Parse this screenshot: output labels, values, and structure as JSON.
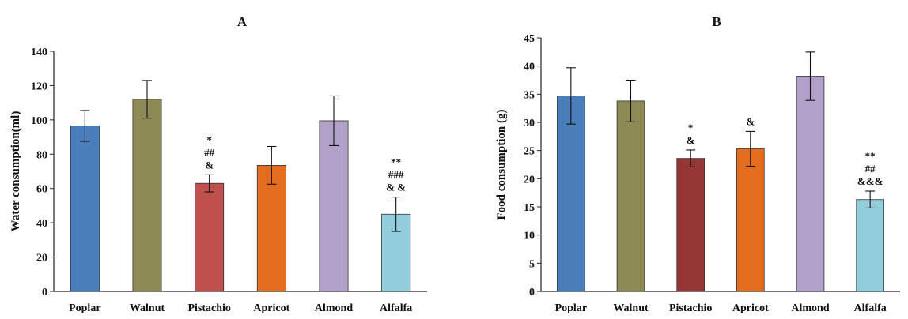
{
  "chart_data": [
    {
      "type": "bar",
      "title": "A",
      "ylabel": "Water consumption(ml)",
      "xlabel": "",
      "ylim": [
        0,
        140
      ],
      "yticks": [
        0,
        20,
        40,
        60,
        80,
        100,
        120,
        140
      ],
      "categories": [
        "Poplar",
        "Walnut",
        "Pistachio",
        "Apricot",
        "Almond",
        "Alfalfa"
      ],
      "values": [
        96.5,
        112,
        63,
        73.5,
        99.5,
        45
      ],
      "errors": [
        9,
        11,
        5,
        11,
        14.5,
        10
      ],
      "colors": [
        "#4a7ebb",
        "#8e8a55",
        "#c0504d",
        "#e46c1e",
        "#b1a0c7",
        "#92cddc"
      ],
      "annotations": [
        [],
        [],
        [
          "*",
          "##",
          "&"
        ],
        [],
        [],
        [
          "**",
          "###",
          "& &"
        ]
      ]
    },
    {
      "type": "bar",
      "title": "B",
      "ylabel": "Food consumption  (g)",
      "xlabel": "",
      "ylim": [
        0,
        45
      ],
      "yticks": [
        0,
        5,
        10,
        15,
        20,
        25,
        30,
        35,
        40,
        45
      ],
      "categories": [
        "Poplar",
        "Walnut",
        "Pistachio",
        "Apricot",
        "Almond",
        "Alfalfa"
      ],
      "values": [
        34.7,
        33.8,
        23.6,
        25.3,
        38.2,
        16.3
      ],
      "errors": [
        5,
        3.7,
        1.5,
        3.1,
        4.3,
        1.5
      ],
      "colors": [
        "#4a7ebb",
        "#8e8a55",
        "#953735",
        "#e46c1e",
        "#b1a0c7",
        "#92cddc"
      ],
      "annotations": [
        [],
        [],
        [
          "*",
          "&"
        ],
        [
          "&"
        ],
        [],
        [
          "**",
          "##",
          "&&&"
        ]
      ]
    }
  ]
}
